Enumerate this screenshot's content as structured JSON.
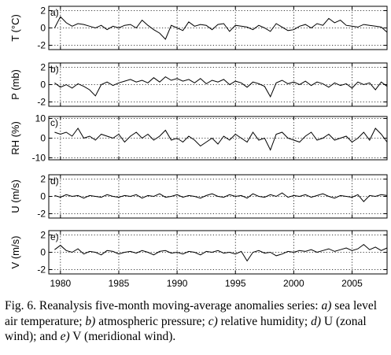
{
  "chart_data": [
    {
      "type": "line",
      "panel_label": "a)",
      "ylabel": "T (°C)",
      "ylim": [
        -2.5,
        2.5
      ],
      "yticks": [
        -2,
        0,
        2
      ],
      "grid": "dotted at ticks",
      "x": [
        1979.5,
        1980.0,
        1980.5,
        1981.0,
        1981.5,
        1982.0,
        1982.5,
        1983.0,
        1983.5,
        1984.0,
        1984.5,
        1985.0,
        1985.5,
        1986.0,
        1986.5,
        1987.0,
        1987.5,
        1988.0,
        1988.5,
        1989.0,
        1989.5,
        1990.0,
        1990.5,
        1991.0,
        1991.5,
        1992.0,
        1992.5,
        1993.0,
        1993.5,
        1994.0,
        1994.5,
        1995.0,
        1995.5,
        1996.0,
        1996.5,
        1997.0,
        1997.5,
        1998.0,
        1998.5,
        1999.0,
        1999.5,
        2000.0,
        2000.5,
        2001.0,
        2001.5,
        2002.0,
        2002.5,
        2003.0,
        2003.5,
        2004.0,
        2004.5,
        2005.0,
        2005.5,
        2006.0,
        2006.5,
        2007.0,
        2007.5,
        2008.0
      ],
      "y": [
        0.0,
        1.3,
        0.6,
        0.2,
        0.5,
        0.4,
        0.2,
        0.0,
        0.3,
        -0.2,
        0.2,
        0.0,
        0.3,
        0.4,
        0.0,
        0.9,
        0.3,
        -0.2,
        -0.6,
        -1.3,
        0.3,
        0.0,
        -0.3,
        0.7,
        0.2,
        0.4,
        0.3,
        -0.2,
        0.4,
        0.5,
        -0.4,
        0.3,
        0.2,
        0.1,
        -0.2,
        0.3,
        0.0,
        -0.4,
        0.5,
        0.1,
        -0.3,
        -0.2,
        0.2,
        0.4,
        0.0,
        0.5,
        0.3,
        1.1,
        0.6,
        0.9,
        0.3,
        0.2,
        0.1,
        0.4,
        0.3,
        0.2,
        0.1,
        -0.5
      ]
    },
    {
      "type": "line",
      "panel_label": "b)",
      "ylabel": "P (mb)",
      "ylim": [
        -2.5,
        2.5
      ],
      "yticks": [
        -2,
        0,
        2
      ],
      "grid": "dotted at ticks",
      "x": [
        1979.5,
        1980.0,
        1980.5,
        1981.0,
        1981.5,
        1982.0,
        1982.5,
        1983.0,
        1983.5,
        1984.0,
        1984.5,
        1985.0,
        1985.5,
        1986.0,
        1986.5,
        1987.0,
        1987.5,
        1988.0,
        1988.5,
        1989.0,
        1989.5,
        1990.0,
        1990.5,
        1991.0,
        1991.5,
        1992.0,
        1992.5,
        1993.0,
        1993.5,
        1994.0,
        1994.5,
        1995.0,
        1995.5,
        1996.0,
        1996.5,
        1997.0,
        1997.5,
        1998.0,
        1998.5,
        1999.0,
        1999.5,
        2000.0,
        2000.5,
        2001.0,
        2001.5,
        2002.0,
        2002.5,
        2003.0,
        2003.5,
        2004.0,
        2004.5,
        2005.0,
        2005.5,
        2006.0,
        2006.5,
        2007.0,
        2007.5,
        2008.0
      ],
      "y": [
        0.2,
        -0.3,
        0.0,
        -0.4,
        0.1,
        -0.2,
        -0.6,
        -1.3,
        0.0,
        0.3,
        -0.1,
        0.2,
        0.4,
        0.6,
        0.3,
        0.5,
        0.2,
        0.8,
        0.3,
        0.9,
        0.5,
        0.7,
        0.4,
        0.6,
        0.2,
        0.7,
        0.1,
        0.5,
        0.3,
        0.6,
        0.0,
        0.4,
        0.2,
        -0.3,
        0.3,
        0.1,
        -0.2,
        -1.4,
        0.2,
        0.5,
        0.1,
        0.3,
        0.0,
        0.4,
        -0.1,
        0.3,
        0.1,
        -0.3,
        0.2,
        -0.1,
        0.1,
        -0.4,
        0.3,
        0.0,
        0.2,
        -0.6,
        0.3,
        -0.2
      ]
    },
    {
      "type": "line",
      "panel_label": "c)",
      "ylabel": "RH (%)",
      "ylim": [
        -11,
        11
      ],
      "yticks": [
        -10,
        0,
        10
      ],
      "grid": "dotted at ticks",
      "x": [
        1979.5,
        1980.0,
        1980.5,
        1981.0,
        1981.5,
        1982.0,
        1982.5,
        1983.0,
        1983.5,
        1984.0,
        1984.5,
        1985.0,
        1985.5,
        1986.0,
        1986.5,
        1987.0,
        1987.5,
        1988.0,
        1988.5,
        1989.0,
        1989.5,
        1990.0,
        1990.5,
        1991.0,
        1991.5,
        1992.0,
        1992.5,
        1993.0,
        1993.5,
        1994.0,
        1994.5,
        1995.0,
        1995.5,
        1996.0,
        1996.5,
        1997.0,
        1997.5,
        1998.0,
        1998.5,
        1999.0,
        1999.5,
        2000.0,
        2000.5,
        2001.0,
        2001.5,
        2002.0,
        2002.5,
        2003.0,
        2003.5,
        2004.0,
        2004.5,
        2005.0,
        2005.5,
        2006.0,
        2006.5,
        2007.0,
        2007.5,
        2008.0
      ],
      "y": [
        3,
        2,
        3,
        1,
        5,
        0,
        1,
        -1,
        2,
        1,
        0,
        2,
        -2,
        1,
        3,
        0,
        2,
        -1,
        1,
        4,
        -1,
        0,
        -2,
        1,
        -1,
        -4,
        -2,
        0,
        -3,
        1,
        -1,
        2,
        0,
        -2,
        3,
        -1,
        0,
        -6,
        2,
        3,
        0,
        -1,
        -2,
        1,
        3,
        -1,
        0,
        2,
        -1,
        0,
        1,
        -2,
        0,
        3,
        -1,
        5,
        2,
        -2
      ]
    },
    {
      "type": "line",
      "panel_label": "d)",
      "ylabel": "U (m/s)",
      "ylim": [
        -2.5,
        2.5
      ],
      "yticks": [
        -2,
        0,
        2
      ],
      "grid": "dotted at ticks",
      "x": [
        1979.5,
        1980.0,
        1980.5,
        1981.0,
        1981.5,
        1982.0,
        1982.5,
        1983.0,
        1983.5,
        1984.0,
        1984.5,
        1985.0,
        1985.5,
        1986.0,
        1986.5,
        1987.0,
        1987.5,
        1988.0,
        1988.5,
        1989.0,
        1989.5,
        1990.0,
        1990.5,
        1991.0,
        1991.5,
        1992.0,
        1992.5,
        1993.0,
        1993.5,
        1994.0,
        1994.5,
        1995.0,
        1995.5,
        1996.0,
        1996.5,
        1997.0,
        1997.5,
        1998.0,
        1998.5,
        1999.0,
        1999.5,
        2000.0,
        2000.5,
        2001.0,
        2001.5,
        2002.0,
        2002.5,
        2003.0,
        2003.5,
        2004.0,
        2004.5,
        2005.0,
        2005.5,
        2006.0,
        2006.5,
        2007.0,
        2007.5,
        2008.0
      ],
      "y": [
        0.1,
        -0.1,
        0.2,
        0.0,
        0.1,
        -0.2,
        0.1,
        0.0,
        -0.1,
        0.2,
        0.0,
        -0.1,
        0.1,
        0.0,
        0.2,
        -0.2,
        0.1,
        0.0,
        0.3,
        -0.1,
        0.0,
        0.2,
        -0.1,
        0.1,
        0.0,
        -0.2,
        0.1,
        0.3,
        0.0,
        -0.1,
        0.2,
        0.0,
        0.1,
        -0.2,
        0.3,
        0.0,
        -0.1,
        0.2,
        0.0,
        0.4,
        -0.1,
        0.1,
        0.0,
        0.2,
        -0.1,
        0.1,
        0.3,
        0.0,
        -0.2,
        0.1,
        0.0,
        -0.1,
        0.2,
        -0.6,
        0.1,
        0.0,
        0.2,
        0.1
      ]
    },
    {
      "type": "line",
      "panel_label": "e)",
      "ylabel": "V (m/s)",
      "ylim": [
        -2.5,
        2.5
      ],
      "yticks": [
        -2,
        0,
        2
      ],
      "grid": "dotted at ticks",
      "x": [
        1979.5,
        1980.0,
        1980.5,
        1981.0,
        1981.5,
        1982.0,
        1982.5,
        1983.0,
        1983.5,
        1984.0,
        1984.5,
        1985.0,
        1985.5,
        1986.0,
        1986.5,
        1987.0,
        1987.5,
        1988.0,
        1988.5,
        1989.0,
        1989.5,
        1990.0,
        1990.5,
        1991.0,
        1991.5,
        1992.0,
        1992.5,
        1993.0,
        1993.5,
        1994.0,
        1994.5,
        1995.0,
        1995.5,
        1996.0,
        1996.5,
        1997.0,
        1997.5,
        1998.0,
        1998.5,
        1999.0,
        1999.5,
        2000.0,
        2000.5,
        2001.0,
        2001.5,
        2002.0,
        2002.5,
        2003.0,
        2003.5,
        2004.0,
        2004.5,
        2005.0,
        2005.5,
        2006.0,
        2006.5,
        2007.0,
        2007.5,
        2008.0
      ],
      "y": [
        0.3,
        0.8,
        0.2,
        0.0,
        0.4,
        -0.2,
        0.1,
        0.0,
        -0.3,
        0.2,
        0.1,
        -0.2,
        0.0,
        0.1,
        -0.1,
        0.2,
        0.0,
        -0.3,
        0.1,
        0.2,
        -0.1,
        0.0,
        -0.2,
        0.1,
        0.0,
        -0.3,
        0.1,
        0.0,
        0.2,
        -0.1,
        0.0,
        -0.2,
        0.1,
        -1.0,
        0.0,
        0.2,
        -0.1,
        0.0,
        -0.4,
        -0.2,
        0.1,
        0.0,
        0.2,
        0.1,
        0.3,
        0.0,
        0.2,
        0.4,
        0.1,
        0.3,
        0.5,
        0.2,
        0.4,
        0.9,
        0.3,
        0.6,
        0.2,
        0.5
      ]
    }
  ],
  "x_axis": {
    "ticks": [
      1980,
      1985,
      1990,
      1995,
      2000,
      2005
    ],
    "xlim": [
      1979,
      2008
    ]
  },
  "caption": {
    "text_1": "Fig. 6. Reanalysis five-month moving-average anomalies series: ",
    "a_label": "a)",
    "a_text": " sea level air temperature; ",
    "b_label": "b)",
    "b_text": " atmospheric pressure; ",
    "c_label": "c)",
    "c_text": " relative humidity; ",
    "d_label": "d)",
    "d_text": " U (zonal wind); and ",
    "e_label": "e)",
    "e_text": " V (meridional wind)."
  }
}
